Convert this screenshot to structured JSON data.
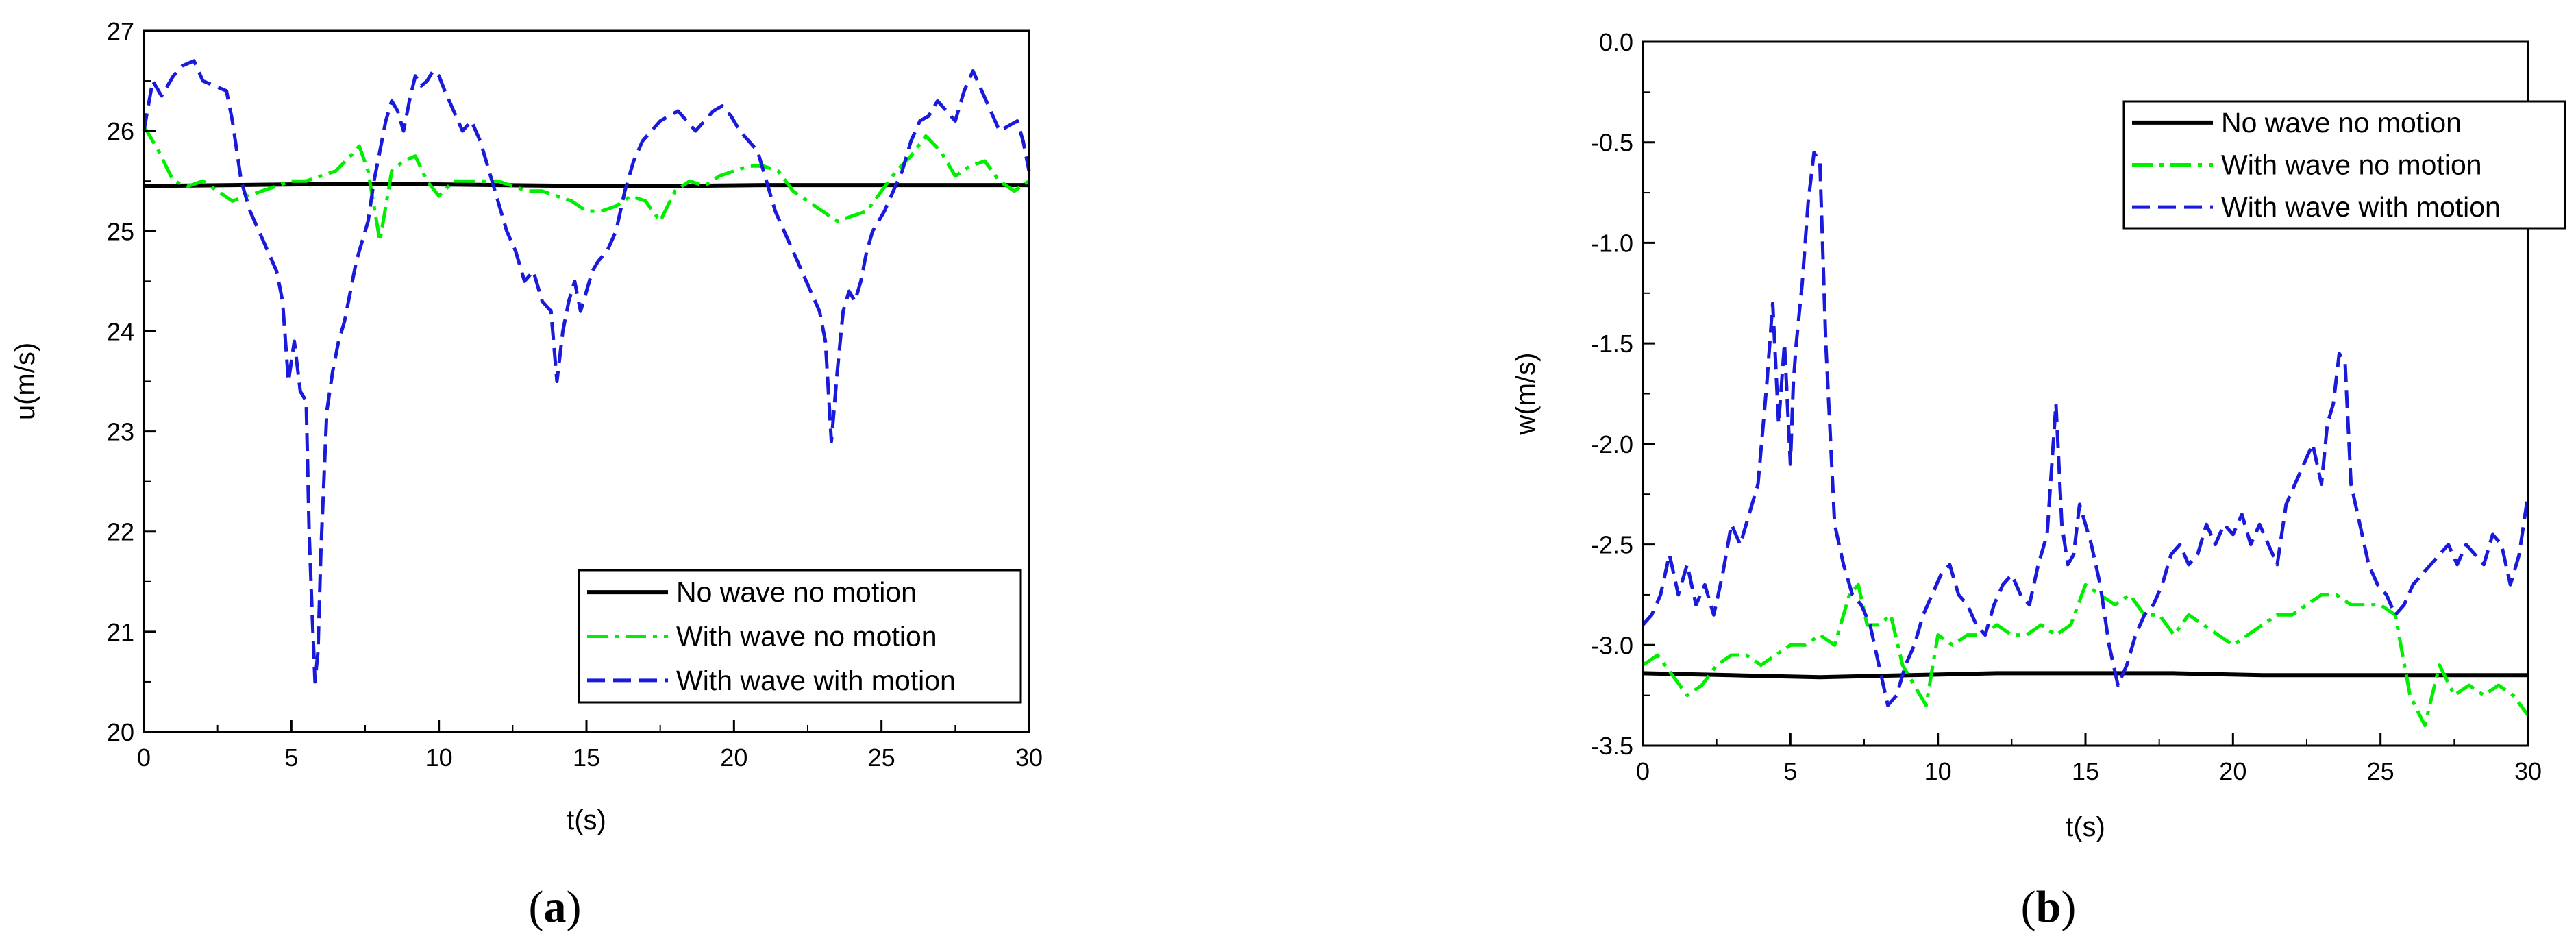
{
  "figure": {
    "panel_a_label": "a",
    "panel_b_label": "b"
  },
  "colors": {
    "no_wave_no_motion": "#000000",
    "with_wave_no_motion": "#00ee00",
    "with_wave_with_motion": "#1a1adb"
  },
  "chart_data": [
    {
      "type": "line",
      "panel": "a",
      "xlabel": "t(s)",
      "ylabel": "u(m/s)",
      "xlim": [
        0,
        30
      ],
      "ylim": [
        20,
        27
      ],
      "xticks": [
        0,
        5,
        10,
        15,
        20,
        25,
        30
      ],
      "xtick_labels": [
        "0",
        "5",
        "10",
        "15",
        "20",
        "25",
        "30"
      ],
      "yticks": [
        20,
        21,
        22,
        23,
        24,
        25,
        26,
        27
      ],
      "ytick_labels": [
        "20",
        "21",
        "22",
        "23",
        "24",
        "25",
        "26",
        "27"
      ],
      "grid": false,
      "legend_position": "bottom-right",
      "series": [
        {
          "name": "No wave no motion",
          "style": "solid",
          "x": [
            0,
            3,
            6,
            9,
            12,
            15,
            18,
            21,
            24,
            27,
            30
          ],
          "y": [
            25.45,
            25.46,
            25.47,
            25.47,
            25.46,
            25.45,
            25.45,
            25.46,
            25.46,
            25.46,
            25.46
          ]
        },
        {
          "name": "With wave no motion",
          "style": "dashdot",
          "x": [
            0,
            0.5,
            1,
            1.5,
            2,
            2.5,
            3,
            3.5,
            4,
            4.5,
            5,
            5.5,
            6,
            6.5,
            7,
            7.3,
            7.6,
            8,
            8.4,
            8.8,
            9.2,
            9.6,
            10,
            10.5,
            11,
            11.5,
            12,
            12.5,
            13,
            13.5,
            14,
            14.5,
            15,
            15.5,
            16,
            16.5,
            17,
            17.5,
            18,
            18.5,
            19,
            19.5,
            20,
            20.5,
            21,
            21.5,
            22,
            22.5,
            23,
            23.5,
            24,
            24.5,
            25,
            25.5,
            26,
            26.5,
            27,
            27.5,
            28,
            28.5,
            29,
            29.5,
            30
          ],
          "y": [
            26.05,
            25.8,
            25.5,
            25.45,
            25.5,
            25.4,
            25.3,
            25.35,
            25.4,
            25.45,
            25.5,
            25.5,
            25.55,
            25.6,
            25.75,
            25.85,
            25.6,
            24.9,
            25.6,
            25.7,
            25.75,
            25.5,
            25.35,
            25.5,
            25.5,
            25.5,
            25.5,
            25.45,
            25.4,
            25.4,
            25.35,
            25.3,
            25.2,
            25.2,
            25.25,
            25.35,
            25.3,
            25.1,
            25.4,
            25.5,
            25.45,
            25.55,
            25.6,
            25.65,
            25.65,
            25.6,
            25.4,
            25.3,
            25.2,
            25.1,
            25.15,
            25.2,
            25.4,
            25.6,
            25.75,
            25.95,
            25.8,
            25.55,
            25.65,
            25.7,
            25.5,
            25.4,
            25.5
          ]
        },
        {
          "name": "With wave with motion",
          "style": "dashed",
          "x": [
            0,
            0.3,
            0.6,
            1,
            1.3,
            1.7,
            2,
            2.4,
            2.8,
            3,
            3.3,
            3.6,
            3.9,
            4.2,
            4.5,
            4.7,
            4.9,
            5.1,
            5.3,
            5.5,
            5.6,
            5.7,
            5.8,
            5.9,
            6,
            6.2,
            6.4,
            6.6,
            6.8,
            7,
            7.2,
            7.4,
            7.6,
            7.8,
            8,
            8.2,
            8.4,
            8.6,
            8.8,
            9,
            9.2,
            9.4,
            9.6,
            9.8,
            10,
            10.2,
            10.5,
            10.8,
            11.1,
            11.4,
            11.7,
            12,
            12.3,
            12.6,
            12.9,
            13.2,
            13.5,
            13.8,
            14,
            14.2,
            14.4,
            14.6,
            14.8,
            15,
            15.2,
            15.4,
            15.7,
            16,
            16.3,
            16.6,
            16.9,
            17.2,
            17.5,
            17.8,
            18.1,
            18.4,
            18.7,
            19,
            19.3,
            19.6,
            19.9,
            20.2,
            20.5,
            20.8,
            21.1,
            21.4,
            21.7,
            22,
            22.3,
            22.6,
            22.9,
            23.1,
            23.3,
            23.5,
            23.7,
            23.9,
            24.1,
            24.3,
            24.5,
            24.7,
            24.9,
            25.1,
            25.4,
            25.7,
            26,
            26.3,
            26.6,
            26.9,
            27.2,
            27.5,
            27.8,
            28.1,
            28.4,
            28.7,
            29,
            29.3,
            29.6,
            29.8,
            30
          ],
          "y": [
            26.0,
            26.5,
            26.35,
            26.55,
            26.65,
            26.7,
            26.5,
            26.45,
            26.4,
            26.1,
            25.5,
            25.2,
            25.0,
            24.8,
            24.6,
            24.3,
            23.5,
            23.9,
            23.4,
            23.3,
            22.0,
            21.2,
            20.5,
            20.8,
            21.8,
            23.2,
            23.6,
            23.9,
            24.1,
            24.4,
            24.7,
            24.9,
            25.1,
            25.5,
            25.8,
            26.1,
            26.3,
            26.2,
            26.0,
            26.3,
            26.55,
            26.45,
            26.5,
            26.6,
            26.55,
            26.4,
            26.2,
            26.0,
            26.1,
            25.9,
            25.6,
            25.3,
            25.0,
            24.8,
            24.5,
            24.6,
            24.3,
            24.2,
            23.5,
            24.0,
            24.3,
            24.5,
            24.2,
            24.4,
            24.6,
            24.7,
            24.8,
            25.0,
            25.4,
            25.7,
            25.9,
            26.0,
            26.1,
            26.15,
            26.2,
            26.1,
            26.0,
            26.1,
            26.2,
            26.25,
            26.15,
            26.0,
            25.9,
            25.8,
            25.5,
            25.2,
            25.0,
            24.8,
            24.6,
            24.4,
            24.2,
            23.9,
            22.9,
            23.6,
            24.2,
            24.4,
            24.3,
            24.5,
            24.8,
            25.0,
            25.1,
            25.2,
            25.4,
            25.6,
            25.9,
            26.1,
            26.15,
            26.3,
            26.2,
            26.1,
            26.4,
            26.6,
            26.4,
            26.2,
            26.0,
            26.05,
            26.1,
            25.9,
            25.6
          ]
        }
      ]
    },
    {
      "type": "line",
      "panel": "b",
      "xlabel": "t(s)",
      "ylabel": "w(m/s)",
      "xlim": [
        0,
        30
      ],
      "ylim": [
        -3.5,
        0.0
      ],
      "xticks": [
        0,
        5,
        10,
        15,
        20,
        25,
        30
      ],
      "xtick_labels": [
        "0",
        "5",
        "10",
        "15",
        "20",
        "25",
        "30"
      ],
      "yticks": [
        -3.5,
        -3.0,
        -2.5,
        -2.0,
        -1.5,
        -1.0,
        -0.5,
        0.0
      ],
      "ytick_labels": [
        "-3.5",
        "-3.0",
        "-2.5",
        "-2.0",
        "-1.5",
        "-1.0",
        "-0.5",
        "0.0"
      ],
      "grid": false,
      "legend_position": "top-right",
      "series": [
        {
          "name": "No wave no motion",
          "style": "solid",
          "x": [
            0,
            3,
            6,
            9,
            12,
            15,
            18,
            21,
            24,
            27,
            30
          ],
          "y": [
            -3.14,
            -3.15,
            -3.16,
            -3.15,
            -3.14,
            -3.14,
            -3.14,
            -3.15,
            -3.15,
            -3.15,
            -3.15
          ]
        },
        {
          "name": "With wave no motion",
          "style": "dashdot",
          "x": [
            0,
            0.5,
            1,
            1.5,
            2,
            2.5,
            3,
            3.5,
            4,
            4.5,
            5,
            5.5,
            6,
            6.5,
            7,
            7.3,
            7.6,
            8,
            8.4,
            8.8,
            9.2,
            9.6,
            10,
            10.5,
            11,
            11.5,
            12,
            12.5,
            13,
            13.5,
            14,
            14.5,
            15,
            15.5,
            16,
            16.5,
            17,
            17.5,
            18,
            18.5,
            19,
            19.5,
            20,
            20.5,
            21,
            21.5,
            22,
            22.5,
            23,
            23.5,
            24,
            24.5,
            25,
            25.5,
            26,
            26.5,
            27,
            27.5,
            28,
            28.5,
            29,
            29.5,
            30
          ],
          "y": [
            -3.1,
            -3.05,
            -3.15,
            -3.25,
            -3.2,
            -3.1,
            -3.05,
            -3.05,
            -3.1,
            -3.05,
            -3.0,
            -3.0,
            -2.95,
            -3.0,
            -2.75,
            -2.7,
            -2.9,
            -2.9,
            -2.85,
            -3.1,
            -3.2,
            -3.3,
            -2.95,
            -3.0,
            -2.95,
            -2.95,
            -2.9,
            -2.95,
            -2.95,
            -2.9,
            -2.95,
            -2.9,
            -2.7,
            -2.75,
            -2.8,
            -2.75,
            -2.85,
            -2.85,
            -2.95,
            -2.85,
            -2.9,
            -2.95,
            -3.0,
            -2.95,
            -2.9,
            -2.85,
            -2.85,
            -2.8,
            -2.75,
            -2.75,
            -2.8,
            -2.8,
            -2.8,
            -2.85,
            -3.25,
            -3.4,
            -3.1,
            -3.25,
            -3.2,
            -3.25,
            -3.2,
            -3.25,
            -3.35
          ]
        },
        {
          "name": "With wave with motion",
          "style": "dashed",
          "x": [
            0,
            0.3,
            0.6,
            0.9,
            1.2,
            1.5,
            1.8,
            2.1,
            2.4,
            2.7,
            3,
            3.3,
            3.6,
            3.9,
            4.2,
            4.4,
            4.6,
            4.8,
            5,
            5.1,
            5.2,
            5.4,
            5.6,
            5.8,
            6,
            6.2,
            6.5,
            6.8,
            7.1,
            7.4,
            7.7,
            8,
            8.3,
            8.6,
            8.9,
            9.2,
            9.5,
            9.8,
            10.1,
            10.4,
            10.7,
            11,
            11.3,
            11.6,
            11.9,
            12.2,
            12.5,
            12.8,
            13.1,
            13.4,
            13.7,
            14,
            14.2,
            14.4,
            14.6,
            14.8,
            15,
            15.2,
            15.5,
            15.8,
            16.1,
            16.4,
            16.7,
            17,
            17.3,
            17.6,
            17.9,
            18.2,
            18.5,
            18.8,
            19.1,
            19.4,
            19.7,
            20,
            20.3,
            20.6,
            20.9,
            21.2,
            21.5,
            21.8,
            22.1,
            22.4,
            22.7,
            23,
            23.2,
            23.4,
            23.6,
            23.8,
            24,
            24.3,
            24.6,
            24.9,
            25.2,
            25.5,
            25.8,
            26.1,
            26.4,
            26.7,
            27,
            27.3,
            27.6,
            27.9,
            28.2,
            28.5,
            28.8,
            29.1,
            29.4,
            29.7,
            30
          ],
          "y": [
            -2.9,
            -2.85,
            -2.75,
            -2.55,
            -2.75,
            -2.6,
            -2.8,
            -2.7,
            -2.85,
            -2.65,
            -2.4,
            -2.5,
            -2.35,
            -2.2,
            -1.7,
            -1.3,
            -1.9,
            -1.5,
            -2.1,
            -1.7,
            -1.5,
            -1.2,
            -0.8,
            -0.55,
            -0.6,
            -1.5,
            -2.4,
            -2.6,
            -2.75,
            -2.8,
            -2.9,
            -3.1,
            -3.3,
            -3.25,
            -3.1,
            -3.0,
            -2.85,
            -2.75,
            -2.65,
            -2.6,
            -2.75,
            -2.8,
            -2.9,
            -2.95,
            -2.8,
            -2.7,
            -2.65,
            -2.75,
            -2.8,
            -2.6,
            -2.45,
            -1.8,
            -2.4,
            -2.6,
            -2.55,
            -2.3,
            -2.4,
            -2.5,
            -2.7,
            -3.0,
            -3.2,
            -3.1,
            -2.95,
            -2.85,
            -2.8,
            -2.7,
            -2.55,
            -2.5,
            -2.6,
            -2.55,
            -2.4,
            -2.5,
            -2.4,
            -2.45,
            -2.35,
            -2.5,
            -2.4,
            -2.5,
            -2.6,
            -2.3,
            -2.2,
            -2.1,
            -2.0,
            -2.2,
            -1.9,
            -1.8,
            -1.55,
            -1.6,
            -2.2,
            -2.4,
            -2.6,
            -2.7,
            -2.75,
            -2.85,
            -2.8,
            -2.7,
            -2.65,
            -2.6,
            -2.55,
            -2.5,
            -2.6,
            -2.5,
            -2.55,
            -2.6,
            -2.45,
            -2.5,
            -2.7,
            -2.55,
            -2.25
          ]
        }
      ]
    }
  ]
}
